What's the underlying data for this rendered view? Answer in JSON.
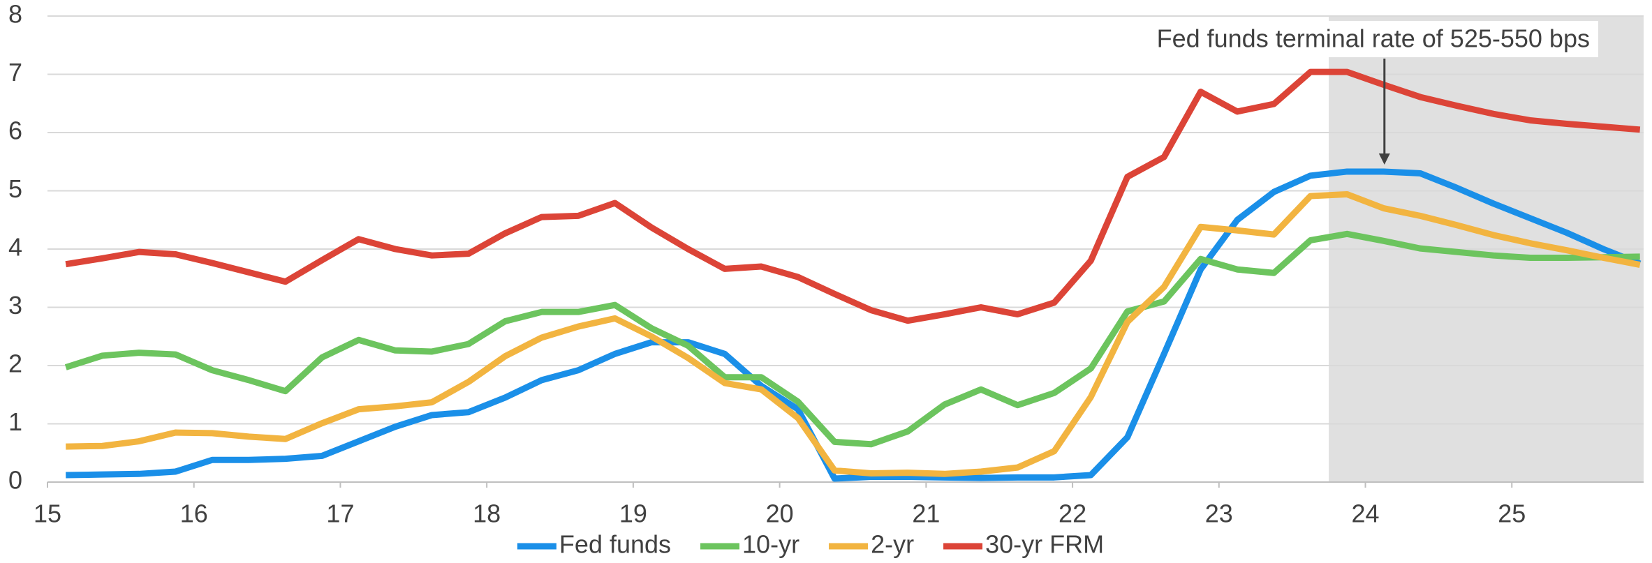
{
  "chart_data": {
    "type": "line",
    "x": [
      15.125,
      15.375,
      15.625,
      15.875,
      16.125,
      16.375,
      16.625,
      16.875,
      17.125,
      17.375,
      17.625,
      17.875,
      18.125,
      18.375,
      18.625,
      18.875,
      19.125,
      19.375,
      19.625,
      19.875,
      20.125,
      20.375,
      20.625,
      20.875,
      21.125,
      21.375,
      21.625,
      21.875,
      22.125,
      22.375,
      22.625,
      22.875,
      23.125,
      23.375,
      23.625,
      23.875,
      24.125,
      24.375,
      24.625,
      24.875,
      25.125,
      25.375,
      25.625,
      25.875
    ],
    "series": [
      {
        "name": "Fed funds",
        "color": "#1a8fe8",
        "values": [
          0.12,
          0.13,
          0.14,
          0.18,
          0.38,
          0.38,
          0.4,
          0.45,
          0.7,
          0.95,
          1.15,
          1.2,
          1.45,
          1.75,
          1.92,
          2.2,
          2.4,
          2.4,
          2.2,
          1.65,
          1.25,
          0.06,
          0.09,
          0.09,
          0.08,
          0.07,
          0.08,
          0.08,
          0.12,
          0.77,
          2.2,
          3.65,
          4.5,
          4.98,
          5.26,
          5.33,
          5.33,
          5.3,
          5.05,
          4.78,
          4.53,
          4.28,
          4.0,
          3.75
        ]
      },
      {
        "name": "10-yr",
        "color": "#6cc45e",
        "values": [
          1.97,
          2.17,
          2.22,
          2.19,
          1.92,
          1.75,
          1.56,
          2.14,
          2.44,
          2.26,
          2.24,
          2.37,
          2.76,
          2.92,
          2.92,
          3.04,
          2.64,
          2.34,
          1.8,
          1.8,
          1.38,
          0.69,
          0.65,
          0.87,
          1.33,
          1.59,
          1.32,
          1.53,
          1.95,
          2.93,
          3.1,
          3.83,
          3.65,
          3.59,
          4.15,
          4.26,
          4.14,
          4.01,
          3.95,
          3.89,
          3.85,
          3.85,
          3.86,
          3.87
        ]
      },
      {
        "name": "2-yr",
        "color": "#f2b440",
        "values": [
          0.61,
          0.62,
          0.7,
          0.85,
          0.84,
          0.78,
          0.74,
          1.01,
          1.25,
          1.3,
          1.37,
          1.72,
          2.16,
          2.48,
          2.67,
          2.81,
          2.5,
          2.13,
          1.7,
          1.59,
          1.1,
          0.2,
          0.15,
          0.16,
          0.14,
          0.18,
          0.25,
          0.53,
          1.46,
          2.75,
          3.35,
          4.38,
          4.32,
          4.25,
          4.91,
          4.94,
          4.7,
          4.57,
          4.41,
          4.24,
          4.1,
          3.98,
          3.85,
          3.73
        ]
      },
      {
        "name": "30-yr FRM",
        "color": "#dc4437",
        "values": [
          3.74,
          3.84,
          3.95,
          3.91,
          3.76,
          3.6,
          3.44,
          3.81,
          4.17,
          4.0,
          3.89,
          3.92,
          4.27,
          4.55,
          4.57,
          4.79,
          4.37,
          4.0,
          3.66,
          3.7,
          3.52,
          3.23,
          2.95,
          2.77,
          2.88,
          3.0,
          2.88,
          3.08,
          3.8,
          5.24,
          5.58,
          6.7,
          6.36,
          6.49,
          7.04,
          7.04,
          6.82,
          6.61,
          6.46,
          6.32,
          6.21,
          6.15,
          6.1,
          6.05
        ]
      }
    ],
    "xlim": [
      15,
      25.9
    ],
    "xticks": [
      15,
      16,
      17,
      18,
      19,
      20,
      21,
      22,
      23,
      24,
      25
    ],
    "ylim": [
      0,
      8
    ],
    "yticks": [
      0,
      1,
      2,
      3,
      4,
      5,
      6,
      7,
      8
    ],
    "grid": true,
    "shade_from": 23.75,
    "annotation": {
      "text": "Fed funds terminal rate of 525-550 bps",
      "x": 24.13,
      "y": 5.33
    },
    "legend": "bottom"
  }
}
